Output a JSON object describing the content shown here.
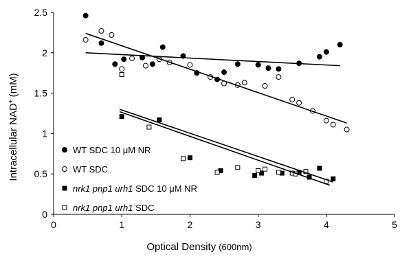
{
  "chart_data": {
    "type": "scatter",
    "xlabel": "Optical Density",
    "xlabel_unit": "(600nm)",
    "ylabel": "Intracellular NAD",
    "ylabel_sup": "+",
    "ylabel_unit": "(mM)",
    "xlim": [
      0,
      5
    ],
    "ylim": [
      0,
      2.5
    ],
    "x_ticks": [
      "0",
      "1",
      "2",
      "3",
      "4",
      "5"
    ],
    "y_ticks": [
      "0",
      "0.5",
      "1",
      "1.5",
      "2",
      "2.5"
    ],
    "grid": false,
    "legend_position": "bottom-left",
    "series": [
      {
        "name_parts": [
          {
            "text": "WT SDC 10 ",
            "italic": false
          },
          {
            "text": "μM NR",
            "italic": false
          }
        ],
        "legend_label": "WT SDC 10 μM NR",
        "marker": "filled-circle",
        "points": [
          [
            0.47,
            2.46
          ],
          [
            0.7,
            2.12
          ],
          [
            0.9,
            1.86
          ],
          [
            1.03,
            1.92
          ],
          [
            1.3,
            1.94
          ],
          [
            1.45,
            1.86
          ],
          [
            1.6,
            2.07
          ],
          [
            1.9,
            1.96
          ],
          [
            2.1,
            1.75
          ],
          [
            2.4,
            1.67
          ],
          [
            2.5,
            1.76
          ],
          [
            2.7,
            1.86
          ],
          [
            3.0,
            1.85
          ],
          [
            3.15,
            1.81
          ],
          [
            3.3,
            1.8
          ],
          [
            3.6,
            1.87
          ],
          [
            3.9,
            1.95
          ],
          [
            4.0,
            2.01
          ],
          [
            4.2,
            2.1
          ]
        ],
        "trend": [
          [
            0.47,
            2.0
          ],
          [
            4.2,
            1.84
          ]
        ]
      },
      {
        "legend_label": "WT SDC",
        "marker": "open-circle",
        "points": [
          [
            0.47,
            2.16
          ],
          [
            0.7,
            2.27
          ],
          [
            0.85,
            2.22
          ],
          [
            1.0,
            1.8
          ],
          [
            1.15,
            1.93
          ],
          [
            1.35,
            1.84
          ],
          [
            1.55,
            1.92
          ],
          [
            1.7,
            1.88
          ],
          [
            2.0,
            1.85
          ],
          [
            2.3,
            1.7
          ],
          [
            2.5,
            1.62
          ],
          [
            2.7,
            1.6
          ],
          [
            2.8,
            1.63
          ],
          [
            3.1,
            1.59
          ],
          [
            3.3,
            1.7
          ],
          [
            3.5,
            1.42
          ],
          [
            3.6,
            1.38
          ],
          [
            3.8,
            1.28
          ],
          [
            4.0,
            1.16
          ],
          [
            4.1,
            1.11
          ],
          [
            4.3,
            1.05
          ]
        ],
        "trend": [
          [
            0.47,
            2.24
          ],
          [
            4.3,
            1.13
          ]
        ]
      },
      {
        "legend_label": "nrk1 pnp1 urh1 SDC 10 μM NR",
        "marker": "filled-square",
        "points": [
          [
            1.0,
            1.21
          ],
          [
            1.55,
            1.17
          ],
          [
            2.0,
            0.7
          ],
          [
            2.45,
            0.54
          ],
          [
            2.95,
            0.48
          ],
          [
            3.05,
            0.51
          ],
          [
            3.35,
            0.51
          ],
          [
            3.6,
            0.52
          ],
          [
            3.75,
            0.46
          ],
          [
            3.9,
            0.57
          ],
          [
            4.1,
            0.44
          ]
        ],
        "trend": [
          [
            0.97,
            1.3
          ],
          [
            4.1,
            0.4
          ]
        ]
      },
      {
        "legend_label": "nrk1 pnp1 urh1 SDC",
        "marker": "open-square",
        "points": [
          [
            1.0,
            1.73
          ],
          [
            1.4,
            1.08
          ],
          [
            1.9,
            0.69
          ],
          [
            2.4,
            0.52
          ],
          [
            2.7,
            0.58
          ],
          [
            3.0,
            0.54
          ],
          [
            3.1,
            0.56
          ],
          [
            3.3,
            0.52
          ],
          [
            3.5,
            0.51
          ],
          [
            3.55,
            0.5
          ],
          [
            3.7,
            0.53
          ],
          [
            4.0,
            0.41
          ]
        ],
        "trend": [
          [
            0.97,
            1.27
          ],
          [
            4.05,
            0.36
          ]
        ]
      }
    ]
  },
  "legend": {
    "items": [
      {
        "prefix": "",
        "italic": "",
        "suffix": "WT SDC 10 μM NR"
      },
      {
        "prefix": "",
        "italic": "",
        "suffix": "WT SDC"
      },
      {
        "prefix": "",
        "italic": "nrk1 pnp1 urh1",
        "suffix": " SDC 10 μM NR"
      },
      {
        "prefix": "",
        "italic": "nrk1 pnp1 urh1",
        "suffix": " SDC"
      }
    ]
  }
}
